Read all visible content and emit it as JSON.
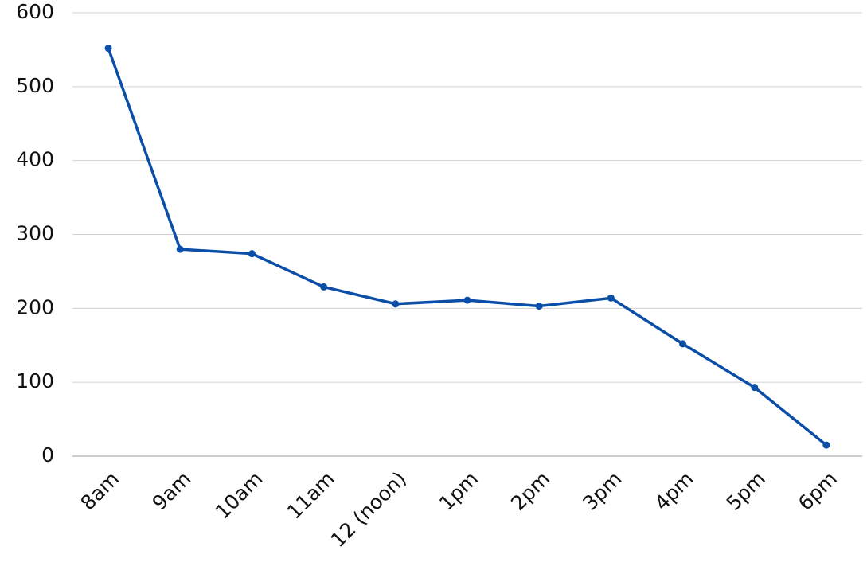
{
  "chart_data": {
    "type": "line",
    "categories": [
      "8am",
      "9am",
      "10am",
      "11am",
      "12 (noon)",
      "1pm",
      "2pm",
      "3pm",
      "4pm",
      "5pm",
      "6pm"
    ],
    "series": [
      {
        "color": "#0b4ea8",
        "values": [
          552,
          280,
          274,
          229,
          206,
          211,
          203,
          214,
          152,
          93,
          15
        ]
      }
    ],
    "ylim": [
      0,
      600
    ],
    "yticks": [
      0,
      100,
      200,
      300,
      400,
      500,
      600
    ],
    "grid": true
  }
}
